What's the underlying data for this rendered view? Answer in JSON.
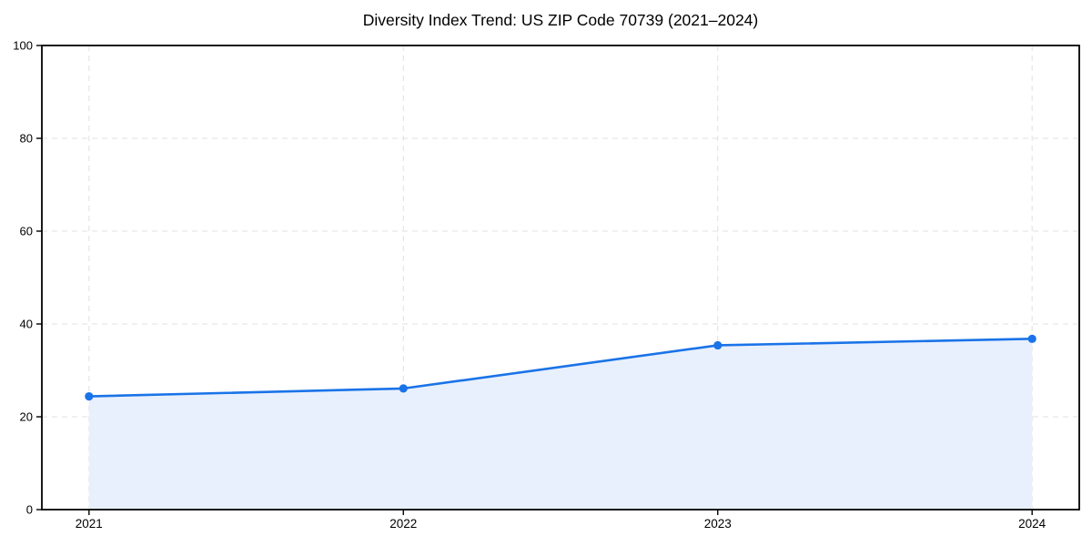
{
  "title": "Diversity Index Trend: US ZIP Code 70739 (2021–2024)",
  "colors": {
    "line": "#1a73e8",
    "marker": "#1a73e8",
    "area_fill": "#e8f0fd",
    "grid": "#e0e0e0",
    "axis": "#000000",
    "tick_label": "#000000",
    "background": "#ffffff"
  },
  "chart_data": {
    "type": "line",
    "title": "Diversity Index Trend: US ZIP Code 70739 (2021–2024)",
    "x": [
      2021,
      2022,
      2023,
      2024
    ],
    "values": [
      24.4,
      26.1,
      35.4,
      36.8
    ],
    "xticks": [
      "2021",
      "2022",
      "2023",
      "2024"
    ],
    "yticks": [
      0,
      20,
      40,
      60,
      80,
      100
    ],
    "xlabel": "",
    "ylabel": "",
    "xlim": [
      2020.85,
      2024.15
    ],
    "ylim": [
      0,
      100
    ],
    "grid": true,
    "grid_style": "dashed",
    "area_fill": true,
    "markers": true,
    "legend": "none"
  }
}
